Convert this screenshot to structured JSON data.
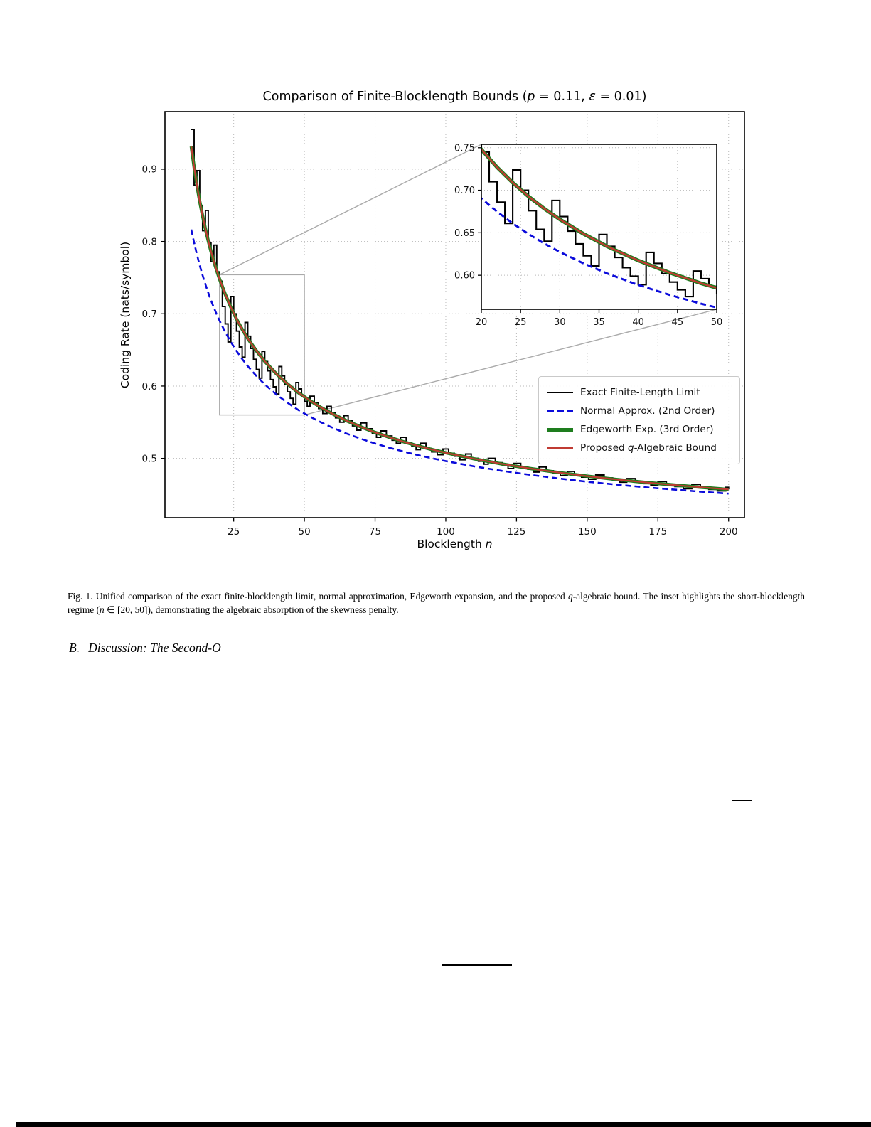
{
  "figure": {
    "caption": {
      "s1": "Fig. 1.  Unified comparison of the exact finite-blocklength limit, normal approximation, Edgeworth expansion, and the proposed ",
      "it1": "q",
      "s2": "-algebraic bound. The inset highlights the short-blocklength regime (",
      "it2": "n",
      "s3": " ∈ [20, 50]), demonstrating the algebraic absorption of the skewness penalty."
    },
    "section_heading": {
      "label": "B.",
      "title": "Discussion: The Second-O"
    }
  },
  "chart_data": {
    "type": "line",
    "title": {
      "pre": "Comparison of Finite-Blocklength Bounds (",
      "p_var": "p",
      "mid": " = 0.11, ",
      "eps_var": "ε",
      "post": " = 0.01)"
    },
    "xlabel": {
      "pre": "Blocklength ",
      "var": "n"
    },
    "ylabel": "Coding Rate (nats/symbol)",
    "xlim": [
      0.7,
      205.6
    ],
    "ylim": [
      0.418,
      0.9796
    ],
    "xticks": {
      "values": [
        25,
        50,
        75,
        100,
        125,
        150,
        175,
        200
      ],
      "labels": [
        "25",
        "50",
        "75",
        "100",
        "125",
        "150",
        "175",
        "200"
      ]
    },
    "yticks": {
      "values": [
        0.5,
        0.6,
        0.7,
        0.8,
        0.9
      ],
      "labels": [
        "0.5",
        "0.6",
        "0.7",
        "0.8",
        "0.9"
      ]
    },
    "grid": {
      "style": "dotted",
      "color": "#b9b9b9"
    },
    "accent_colors": {
      "exact": "#000000",
      "normal": "#0b0bdb",
      "edgeworth": "#1e7d1e",
      "proposed": "#c03b33",
      "connector": "#aaaaaa"
    },
    "legend": {
      "position": "center-right",
      "entries": [
        {
          "name": "exact",
          "pre": "Exact Finite-Length Limit",
          "it": "",
          "post": ""
        },
        {
          "name": "normal",
          "pre": "Normal Approx. (2nd Order)",
          "it": "",
          "post": ""
        },
        {
          "name": "edgeworth",
          "pre": "Edgeworth Exp. (3rd Order)",
          "it": "",
          "post": ""
        },
        {
          "name": "proposed",
          "pre": "Proposed ",
          "it": "q",
          "post": "-Algebraic Bound"
        }
      ]
    },
    "series": [
      {
        "name": "exact",
        "type": "step",
        "color": "#000000",
        "width": 1.9,
        "points": [
          [
            10,
            0.955
          ],
          [
            11,
            0.878
          ],
          [
            12,
            0.898
          ],
          [
            13,
            0.85
          ],
          [
            14,
            0.815
          ],
          [
            15,
            0.843
          ],
          [
            16,
            0.798
          ],
          [
            17,
            0.772
          ],
          [
            18,
            0.795
          ],
          [
            19,
            0.758
          ],
          [
            20,
            0.745
          ],
          [
            21,
            0.71
          ],
          [
            22,
            0.686
          ],
          [
            23,
            0.661
          ],
          [
            24,
            0.724
          ],
          [
            25,
            0.7
          ],
          [
            26,
            0.676
          ],
          [
            27,
            0.654
          ],
          [
            28,
            0.64
          ],
          [
            29,
            0.688
          ],
          [
            30,
            0.669
          ],
          [
            31,
            0.652
          ],
          [
            32,
            0.637
          ],
          [
            33,
            0.623
          ],
          [
            34,
            0.611
          ],
          [
            35,
            0.648
          ],
          [
            36,
            0.634
          ],
          [
            37,
            0.621
          ],
          [
            38,
            0.609
          ],
          [
            39,
            0.599
          ],
          [
            40,
            0.589
          ],
          [
            41,
            0.627
          ],
          [
            42,
            0.614
          ],
          [
            43,
            0.602
          ],
          [
            44,
            0.592
          ],
          [
            45,
            0.583
          ],
          [
            46,
            0.575
          ],
          [
            47,
            0.605
          ],
          [
            48,
            0.596
          ],
          [
            49,
            0.587
          ],
          [
            50,
            0.579
          ],
          [
            51,
            0.572
          ],
          [
            52,
            0.586
          ],
          [
            53.5,
            0.577
          ],
          [
            55,
            0.569
          ],
          [
            56.5,
            0.562
          ],
          [
            58,
            0.572
          ],
          [
            59.5,
            0.563
          ],
          [
            61,
            0.556
          ],
          [
            62.5,
            0.55
          ],
          [
            64,
            0.559
          ],
          [
            65.5,
            0.552
          ],
          [
            67,
            0.545
          ],
          [
            68.5,
            0.539
          ],
          [
            70,
            0.549
          ],
          [
            72,
            0.541
          ],
          [
            74,
            0.534
          ],
          [
            75.5,
            0.529
          ],
          [
            77,
            0.538
          ],
          [
            79,
            0.531
          ],
          [
            81,
            0.525
          ],
          [
            82.5,
            0.521
          ],
          [
            84,
            0.529
          ],
          [
            86,
            0.522
          ],
          [
            88,
            0.517
          ],
          [
            89.5,
            0.512
          ],
          [
            91,
            0.521
          ],
          [
            93,
            0.514
          ],
          [
            95,
            0.509
          ],
          [
            97,
            0.505
          ],
          [
            99,
            0.513
          ],
          [
            101,
            0.507
          ],
          [
            103,
            0.503
          ],
          [
            105,
            0.498
          ],
          [
            107,
            0.506
          ],
          [
            109,
            0.5
          ],
          [
            111.5,
            0.496
          ],
          [
            113.5,
            0.492
          ],
          [
            115,
            0.5
          ],
          [
            117.5,
            0.494
          ],
          [
            120,
            0.49
          ],
          [
            122,
            0.486
          ],
          [
            124,
            0.493
          ],
          [
            126.5,
            0.488
          ],
          [
            129,
            0.485
          ],
          [
            131,
            0.481
          ],
          [
            133,
            0.488
          ],
          [
            135.5,
            0.483
          ],
          [
            138,
            0.48
          ],
          [
            140.5,
            0.476
          ],
          [
            143,
            0.482
          ],
          [
            145.5,
            0.478
          ],
          [
            148,
            0.474
          ],
          [
            150.5,
            0.471
          ],
          [
            153,
            0.477
          ],
          [
            156,
            0.473
          ],
          [
            159,
            0.469
          ],
          [
            161.5,
            0.467
          ],
          [
            164,
            0.472
          ],
          [
            167,
            0.468
          ],
          [
            170,
            0.465
          ],
          [
            172.5,
            0.463
          ],
          [
            175,
            0.468
          ],
          [
            178,
            0.464
          ],
          [
            181,
            0.461
          ],
          [
            184,
            0.458
          ],
          [
            187,
            0.464
          ],
          [
            190,
            0.46
          ],
          [
            193,
            0.457
          ],
          [
            196,
            0.455
          ],
          [
            199,
            0.46
          ],
          [
            200,
            0.457
          ]
        ]
      },
      {
        "name": "normal",
        "type": "line",
        "color": "#0b0bdb",
        "width": 2.6,
        "dash": [
          8,
          5
        ],
        "points": [
          [
            10,
            0.8165
          ],
          [
            11,
            0.7985
          ],
          [
            12,
            0.7821
          ],
          [
            13,
            0.767
          ],
          [
            14,
            0.7534
          ],
          [
            15,
            0.7407
          ],
          [
            16,
            0.7291
          ],
          [
            17,
            0.7184
          ],
          [
            18,
            0.7084
          ],
          [
            19,
            0.6992
          ],
          [
            20,
            0.6905
          ],
          [
            22,
            0.6748
          ],
          [
            24,
            0.661
          ],
          [
            26,
            0.6486
          ],
          [
            28,
            0.6374
          ],
          [
            30,
            0.6275
          ],
          [
            33,
            0.6141
          ],
          [
            36,
            0.6023
          ],
          [
            40,
            0.5886
          ],
          [
            44,
            0.577
          ],
          [
            48,
            0.5666
          ],
          [
            52,
            0.5577
          ],
          [
            56,
            0.5496
          ],
          [
            60,
            0.5423
          ],
          [
            65,
            0.5342
          ],
          [
            70,
            0.5271
          ],
          [
            75,
            0.5206
          ],
          [
            80,
            0.5148
          ],
          [
            85,
            0.5095
          ],
          [
            90,
            0.5046
          ],
          [
            95,
            0.5002
          ],
          [
            100,
            0.4962
          ],
          [
            110,
            0.4889
          ],
          [
            120,
            0.4826
          ],
          [
            130,
            0.4771
          ],
          [
            140,
            0.4722
          ],
          [
            150,
            0.4677
          ],
          [
            160,
            0.4638
          ],
          [
            170,
            0.4602
          ],
          [
            180,
            0.457
          ],
          [
            190,
            0.454
          ],
          [
            200,
            0.4512
          ]
        ]
      },
      {
        "name": "edgeworth",
        "type": "line",
        "color": "#1e7d1e",
        "width": 4.6,
        "overlaps": "proposed"
      },
      {
        "name": "proposed",
        "type": "line",
        "color": "#c03b33",
        "width": 2.2,
        "points": [
          [
            10,
            0.9315
          ],
          [
            11,
            0.903
          ],
          [
            12,
            0.8779
          ],
          [
            13,
            0.8555
          ],
          [
            14,
            0.8355
          ],
          [
            15,
            0.8174
          ],
          [
            16,
            0.801
          ],
          [
            17,
            0.786
          ],
          [
            18,
            0.7723
          ],
          [
            19,
            0.7597
          ],
          [
            20,
            0.748
          ],
          [
            22,
            0.7271
          ],
          [
            24,
            0.7089
          ],
          [
            26,
            0.6928
          ],
          [
            28,
            0.6785
          ],
          [
            30,
            0.6658
          ],
          [
            33,
            0.6489
          ],
          [
            36,
            0.6342
          ],
          [
            40,
            0.6174
          ],
          [
            44,
            0.6031
          ],
          [
            48,
            0.5906
          ],
          [
            52,
            0.5798
          ],
          [
            56,
            0.5701
          ],
          [
            60,
            0.5615
          ],
          [
            65,
            0.5519
          ],
          [
            70,
            0.5435
          ],
          [
            75,
            0.5359
          ],
          [
            80,
            0.5292
          ],
          [
            85,
            0.523
          ],
          [
            90,
            0.5174
          ],
          [
            95,
            0.5123
          ],
          [
            100,
            0.5077
          ],
          [
            110,
            0.4994
          ],
          [
            120,
            0.4922
          ],
          [
            130,
            0.4859
          ],
          [
            140,
            0.4804
          ],
          [
            150,
            0.4754
          ],
          [
            160,
            0.471
          ],
          [
            170,
            0.467
          ],
          [
            180,
            0.4634
          ],
          [
            190,
            0.4601
          ],
          [
            200,
            0.457
          ]
        ]
      }
    ],
    "inset": {
      "xlim": [
        20,
        50
      ],
      "ylim": [
        0.56,
        0.754
      ],
      "xticks": {
        "values": [
          20,
          25,
          30,
          35,
          40,
          45,
          50
        ],
        "labels": [
          "20",
          "25",
          "30",
          "35",
          "40",
          "45",
          "50"
        ]
      },
      "yticks": {
        "values": [
          0.6,
          0.65,
          0.7,
          0.75
        ],
        "labels": [
          "0.60",
          "0.65",
          "0.70",
          "0.75"
        ]
      }
    }
  }
}
